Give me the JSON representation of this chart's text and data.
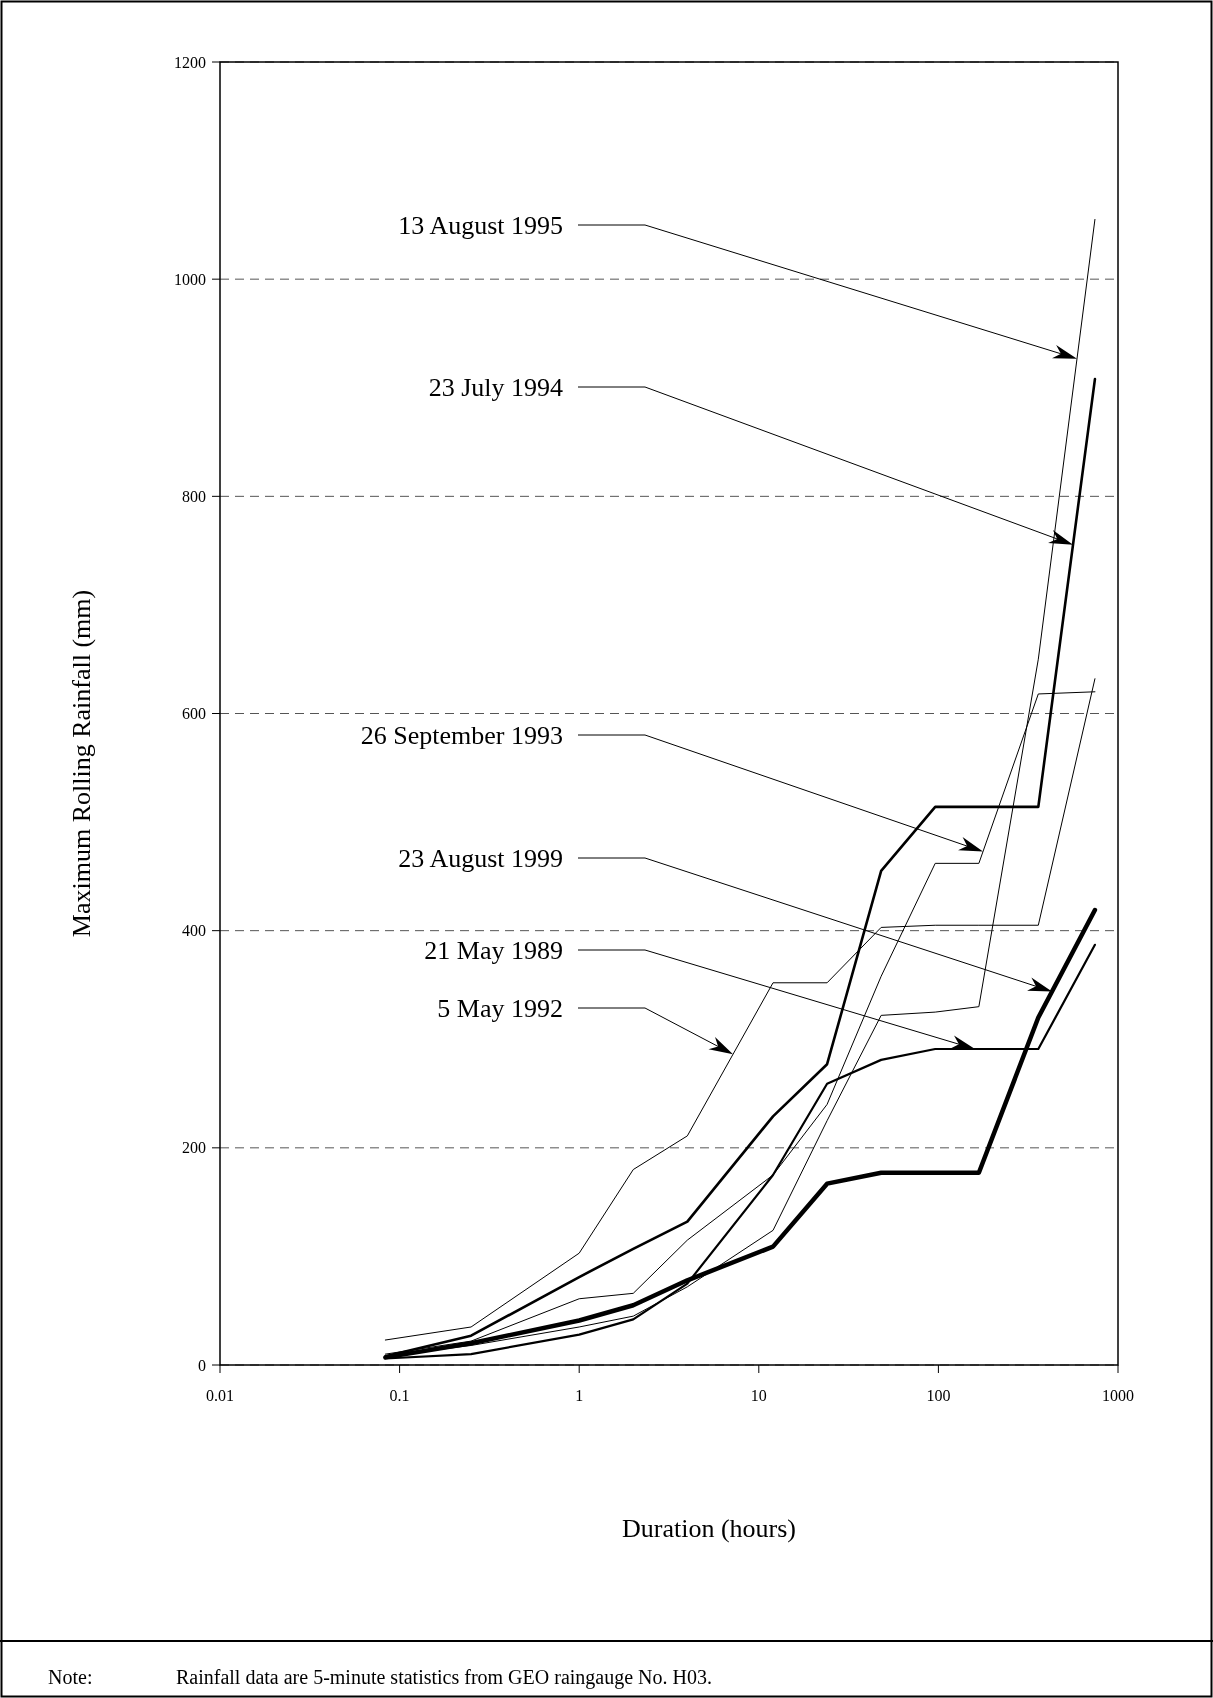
{
  "chart_data": {
    "type": "line",
    "xlabel": "Duration (hours)",
    "ylabel": "Maximum Rolling Rainfall (mm)",
    "x": [
      0.0833,
      0.25,
      1,
      2,
      4,
      12,
      24,
      48,
      96,
      168,
      360,
      744
    ],
    "series": [
      {
        "color": "#000000",
        "values": [
          8,
          18,
          35,
          45,
          72,
          124,
          225,
          322,
          325,
          330,
          650,
          1055
        ]
      },
      {
        "color": "#000000",
        "values": [
          8,
          27,
          81,
          107,
          132,
          229,
          277,
          455,
          514,
          514,
          514,
          908
        ]
      },
      {
        "color": "#000000",
        "values": [
          10,
          22,
          61,
          66,
          115,
          175,
          240,
          358,
          462,
          462,
          618,
          620
        ]
      },
      {
        "color": "#000000",
        "values": [
          7,
          20,
          41,
          55,
          78,
          109,
          167,
          177,
          177,
          177,
          320,
          419
        ]
      },
      {
        "color": "#000000",
        "values": [
          6,
          10,
          28,
          42,
          75,
          175,
          259,
          281,
          291,
          291,
          291,
          387
        ]
      },
      {
        "color": "#000000",
        "values": [
          23,
          35,
          103,
          180,
          211,
          352,
          352,
          403,
          405,
          405,
          405,
          632
        ]
      }
    ],
    "log": "x",
    "xlim": [
      0.01,
      1000
    ],
    "xticks": [
      0.01,
      0.1,
      1,
      10,
      100,
      1000
    ],
    "ylim": [
      0,
      1200
    ],
    "yticks": [
      0,
      200,
      400,
      600,
      800,
      1000,
      1200
    ],
    "grid": "y",
    "line_style": "solid",
    "marker": "none",
    "annotations": [
      "13 August 1995",
      "23 July 1994",
      "26 September 1993",
      "23 August 1999",
      "21 May 1989",
      "5 May 1992",
      "Note:",
      "Rainfall data are 5-minute statistics from GEO raingauge No. H03."
    ]
  }
}
